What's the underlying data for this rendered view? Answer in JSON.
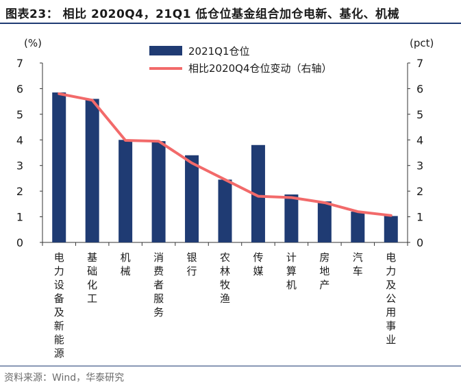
{
  "header": {
    "title": "图表23： 相比 2020Q4，21Q1 低仓位基金组合加仓电新、基化、机械"
  },
  "footer": {
    "source": "资料来源：Wind，华泰研究"
  },
  "chart_data": {
    "type": "bar",
    "categories": [
      "电力设备及新能源",
      "基础化工",
      "机械",
      "消费者服务",
      "银行",
      "农林牧渔",
      "传媒",
      "计算机",
      "房地产",
      "汽车",
      "电力及公用事业"
    ],
    "series": [
      {
        "name": "2021Q1仓位",
        "type": "bar",
        "axis": "left",
        "color": "#1f3b73",
        "values": [
          5.85,
          5.6,
          4.0,
          3.95,
          3.4,
          2.45,
          3.8,
          1.87,
          1.6,
          1.2,
          1.03
        ]
      },
      {
        "name": "相比2020Q4仓位变动（右轴）",
        "type": "line",
        "axis": "right",
        "color": "#f26a6a",
        "values": [
          5.8,
          5.55,
          3.98,
          3.95,
          3.1,
          2.45,
          1.8,
          1.75,
          1.55,
          1.2,
          1.05
        ]
      }
    ],
    "ylabel": "(%)",
    "y2label": "(pct)",
    "ylim": [
      0,
      7
    ],
    "y2lim": [
      0,
      7
    ],
    "yticks": [
      "0",
      "1",
      "2",
      "3",
      "4",
      "5",
      "6",
      "7"
    ],
    "y2ticks": [
      "0",
      "1",
      "2",
      "3",
      "4",
      "5",
      "6",
      "7"
    ],
    "legend": "top-center",
    "grid": false
  }
}
